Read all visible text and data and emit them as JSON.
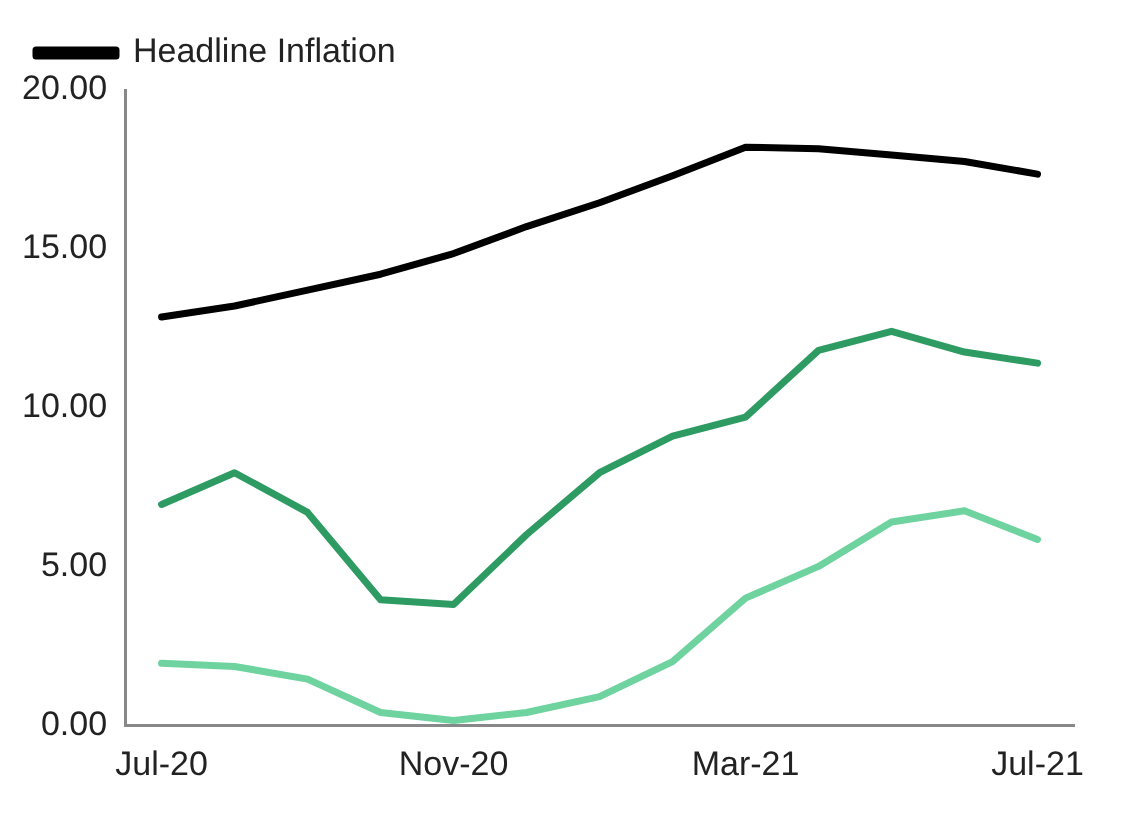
{
  "chart_data": {
    "type": "line",
    "categories": [
      "Jul-20",
      null,
      null,
      null,
      "Nov-20",
      null,
      null,
      null,
      "Mar-21",
      null,
      null,
      null,
      "Jul-21"
    ],
    "series": [
      {
        "name": "Headline Inflation",
        "color": "#000000",
        "values": [
          12.85,
          13.2,
          13.7,
          14.2,
          14.85,
          15.7,
          16.45,
          17.3,
          18.2,
          18.15,
          17.95,
          17.75,
          17.35
        ]
      },
      {
        "color": "#2e9b63",
        "values": [
          6.95,
          7.95,
          6.7,
          3.95,
          3.8,
          6.0,
          7.95,
          9.1,
          9.7,
          11.8,
          12.4,
          11.75,
          11.4
        ]
      },
      {
        "color": "#6fd3a0",
        "values": [
          1.95,
          1.85,
          1.45,
          0.4,
          0.15,
          0.4,
          0.9,
          2.0,
          4.0,
          5.0,
          6.4,
          6.75,
          5.85
        ]
      }
    ],
    "ylim": [
      0,
      20
    ],
    "yticks": [
      {
        "value": 0,
        "label": "0.00"
      },
      {
        "value": 5,
        "label": "5.00"
      },
      {
        "value": 10,
        "label": "10.00"
      },
      {
        "value": 15,
        "label": "15.00"
      },
      {
        "value": 20,
        "label": "20.00"
      }
    ],
    "grid": false,
    "legend": "top left",
    "marker": "none",
    "line_style": "solid"
  }
}
